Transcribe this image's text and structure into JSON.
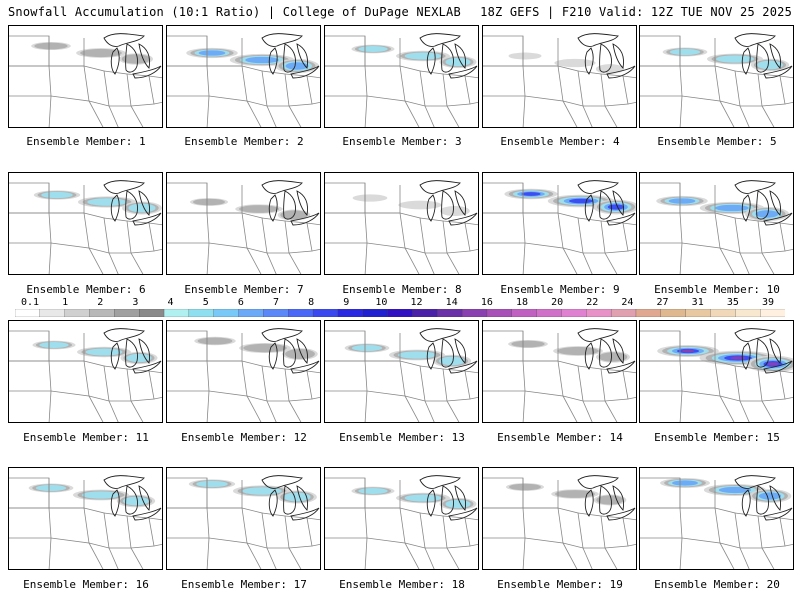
{
  "header": {
    "left": "Snowfall Accumulation (10:1 Ratio) | College of DuPage NEXLAB",
    "right": "18Z GEFS | F210 Valid: 12Z TUE NOV 25 2025"
  },
  "panels": [
    {
      "label": "Ensemble Member: 1",
      "intensity": 0.35
    },
    {
      "label": "Ensemble Member: 2",
      "intensity": 0.7
    },
    {
      "label": "Ensemble Member: 3",
      "intensity": 0.45
    },
    {
      "label": "Ensemble Member: 4",
      "intensity": 0.15
    },
    {
      "label": "Ensemble Member: 5",
      "intensity": 0.5
    },
    {
      "label": "Ensemble Member: 6",
      "intensity": 0.55
    },
    {
      "label": "Ensemble Member: 7",
      "intensity": 0.3
    },
    {
      "label": "Ensemble Member: 8",
      "intensity": 0.2
    },
    {
      "label": "Ensemble Member: 9",
      "intensity": 0.75
    },
    {
      "label": "Ensemble Member: 10",
      "intensity": 0.7
    },
    {
      "label": "Ensemble Member: 11",
      "intensity": 0.45
    },
    {
      "label": "Ensemble Member: 12",
      "intensity": 0.4
    },
    {
      "label": "Ensemble Member: 13",
      "intensity": 0.5
    },
    {
      "label": "Ensemble Member: 14",
      "intensity": 0.35
    },
    {
      "label": "Ensemble Member: 15",
      "intensity": 1.0
    },
    {
      "label": "Ensemble Member: 16",
      "intensity": 0.5
    },
    {
      "label": "Ensemble Member: 17",
      "intensity": 0.55
    },
    {
      "label": "Ensemble Member: 18",
      "intensity": 0.45
    },
    {
      "label": "Ensemble Member: 19",
      "intensity": 0.3
    },
    {
      "label": "Ensemble Member: 20",
      "intensity": 0.65
    }
  ],
  "colorbar": {
    "ticks": [
      "0.1",
      "1",
      "2",
      "3",
      "4",
      "5",
      "6",
      "7",
      "8",
      "9",
      "10",
      "12",
      "14",
      "16",
      "18",
      "20",
      "22",
      "24",
      "27",
      "31",
      "35",
      "39"
    ],
    "colors": [
      "#ffffff",
      "#e8e8e8",
      "#d0d0d0",
      "#b8b8b8",
      "#a0a0a0",
      "#8a8a8a",
      "#b0f0f0",
      "#8ee0f0",
      "#78c8f8",
      "#6aa8f8",
      "#5a88f8",
      "#4a68f8",
      "#3a48f0",
      "#2a28e0",
      "#2020d0",
      "#3010c0",
      "#4a20a8",
      "#6a30a8",
      "#8a40b0",
      "#a850b8",
      "#c060c0",
      "#d070c8",
      "#e080d0",
      "#e890c8",
      "#e0a0b0",
      "#e0a890",
      "#e0b890",
      "#e8c8a0",
      "#f0d8b8",
      "#f8e8d0",
      "#fff0e0"
    ]
  }
}
